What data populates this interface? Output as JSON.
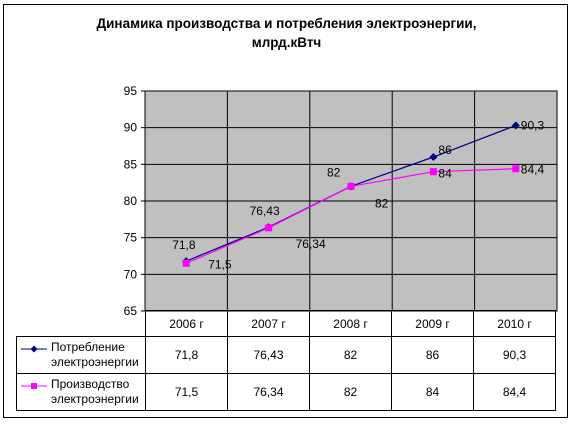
{
  "chart_data": {
    "type": "line",
    "title_line1": "Динамика производства и потребления электроэнергии,",
    "title_line2": "млрд.кВтч",
    "categories": [
      "2006 г",
      "2007 г",
      "2008 г",
      "2009 г",
      "2010 г"
    ],
    "ylim": [
      65,
      95
    ],
    "yticks": [
      "65",
      "70",
      "75",
      "80",
      "85",
      "90",
      "95"
    ],
    "grid": true,
    "series": [
      {
        "name": "Потребление электроэнергии",
        "name_line1": "Потребление",
        "name_line2": "электроэнергии",
        "values": [
          71.8,
          76.43,
          82,
          86,
          90.3
        ],
        "labels": [
          "71,8",
          "76,43",
          "82",
          "86",
          "90,3"
        ],
        "color": "#000080",
        "marker": "diamond"
      },
      {
        "name": "Производство электроэнергии",
        "name_line1": "Производство",
        "name_line2": "электроэнергии",
        "values": [
          71.5,
          76.34,
          82,
          84,
          84.4
        ],
        "labels": [
          "71,5",
          "76,34",
          "82",
          "84",
          "84,4"
        ],
        "color": "#ff00ff",
        "marker": "square"
      }
    ],
    "plot_background": "#c0c0c0"
  }
}
